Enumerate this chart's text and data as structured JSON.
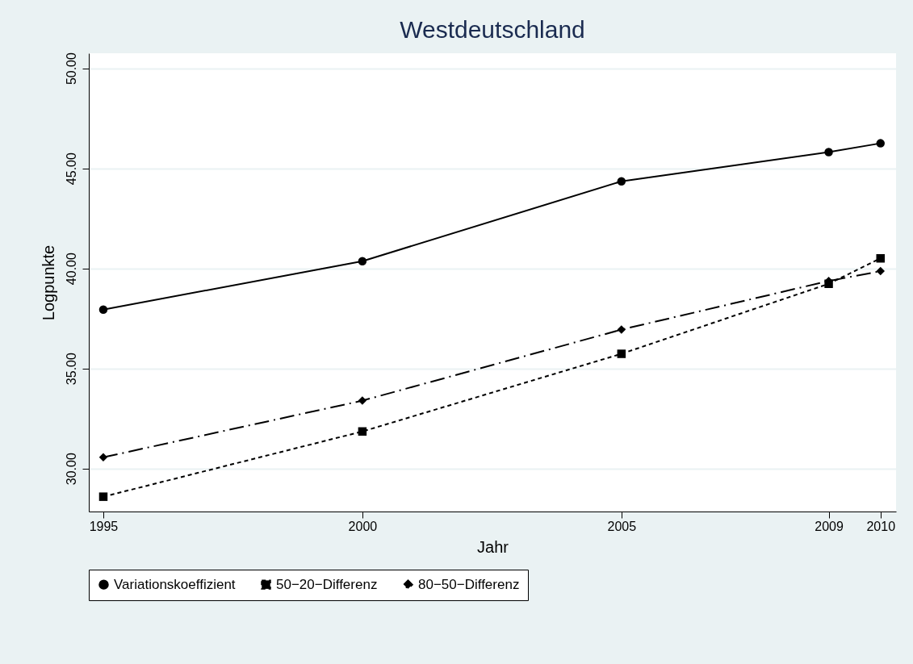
{
  "chart_data": {
    "type": "line",
    "title": "Westdeutschland",
    "xlabel": "Jahr",
    "ylabel": "Logpunkte",
    "x": [
      1995,
      2000,
      2005,
      2009,
      2010
    ],
    "series": [
      {
        "name": "Variationskoeffizient",
        "color": "#000000",
        "line_style": "solid",
        "marker": "circle",
        "values": [
          37.94,
          40.36,
          44.35,
          45.81,
          46.25
        ]
      },
      {
        "name": "50−20−Differenz",
        "color": "#000000",
        "line_style": "dotted",
        "marker": "square",
        "values": [
          28.59,
          31.85,
          35.73,
          39.23,
          40.5
        ]
      },
      {
        "name": "80−50−Differenz",
        "color": "#000000",
        "line_style": "dashed",
        "marker": "diamond",
        "values": [
          30.56,
          33.39,
          36.94,
          39.37,
          39.86
        ]
      }
    ],
    "xlim": [
      1994.72,
      2010.3
    ],
    "ylim": [
      27.85,
      50.75
    ],
    "xticks": [
      1995,
      2000,
      2005,
      2009,
      2010
    ],
    "yticks": [
      {
        "value": 30,
        "label": "30.00"
      },
      {
        "value": 35,
        "label": "35.00"
      },
      {
        "value": 40,
        "label": "40.00"
      },
      {
        "value": 45,
        "label": "45.00"
      },
      {
        "value": 50,
        "label": "50.00"
      }
    ],
    "grid": "y",
    "legend": "bottom"
  }
}
